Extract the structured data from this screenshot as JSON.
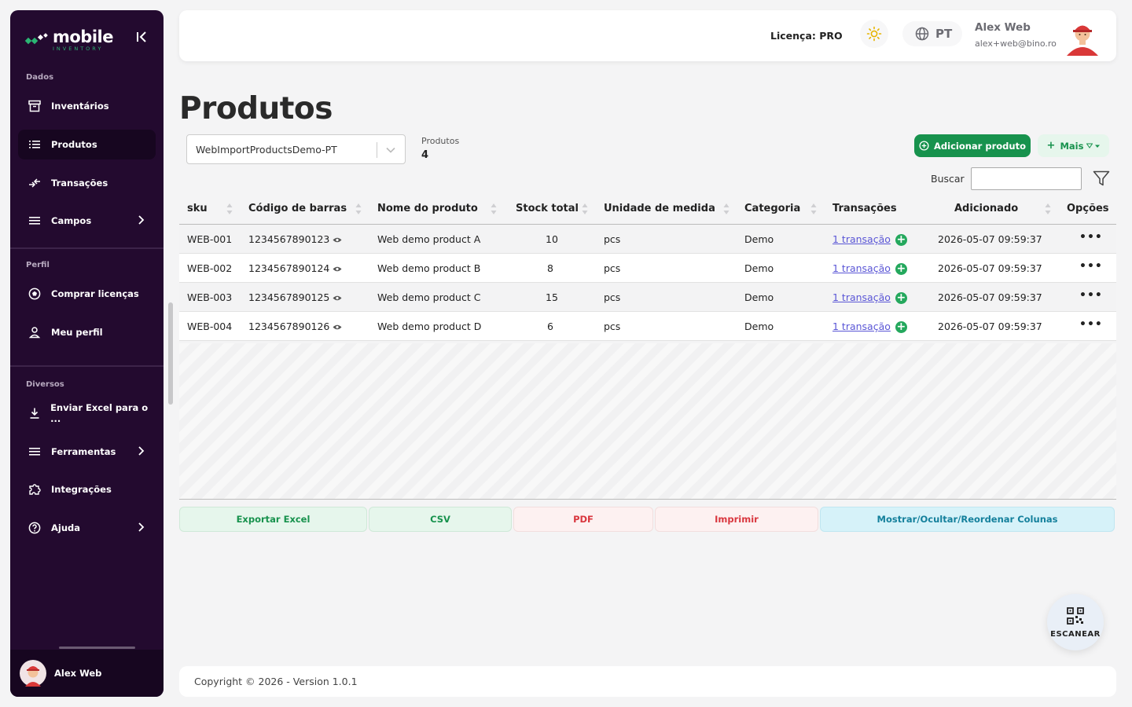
{
  "brand": {
    "name": "mobile",
    "tagline": "INVENTORY"
  },
  "sidebar": {
    "sections": [
      {
        "label": "Dados",
        "items": [
          {
            "label": "Inventários",
            "icon": "archive-icon"
          },
          {
            "label": "Produtos",
            "icon": "list-icon",
            "active": true
          },
          {
            "label": "Transações",
            "icon": "transfer-icon"
          },
          {
            "label": "Campos",
            "icon": "menu-icon",
            "has_children": true
          }
        ]
      },
      {
        "label": "Perfil",
        "items": [
          {
            "label": "Comprar licenças",
            "icon": "soccer-ball-icon"
          },
          {
            "label": "Meu perfil",
            "icon": "user-icon"
          }
        ]
      },
      {
        "label": "Diversos",
        "items": [
          {
            "label": "Enviar Excel para o ...",
            "icon": "download-icon"
          },
          {
            "label": "Ferramentas",
            "icon": "menu-icon",
            "has_children": true
          },
          {
            "label": "Integrações",
            "icon": "puzzle-icon"
          },
          {
            "label": "Ajuda",
            "icon": "help-icon",
            "has_children": true
          }
        ]
      }
    ],
    "user": {
      "name": "Alex Web"
    }
  },
  "header": {
    "license": "Licença: PRO",
    "language": "PT",
    "user_name": "Alex Web",
    "user_email": "alex+web@bino.ro"
  },
  "main": {
    "title": "Produtos",
    "inventory_select": "WebImportProductsDemo-PT",
    "count_label": "Produtos",
    "count_value": "4",
    "add_button": "Adicionar produto",
    "more_button": "Mais",
    "search_label": "Buscar",
    "search_value": "",
    "columns": [
      "sku",
      "Código de barras",
      "Nome do produto",
      "Stock total",
      "Unidade de medida",
      "Categoria",
      "Transações",
      "Adicionado",
      "Opções"
    ],
    "rows": [
      {
        "sku": "WEB-001",
        "barcode": "1234567890123",
        "name": "Web demo product A",
        "stock": "10",
        "unit": "pcs",
        "category": "Demo",
        "transactions": "1 transação",
        "added": "2026-05-07 09:59:37"
      },
      {
        "sku": "WEB-002",
        "barcode": "1234567890124",
        "name": "Web demo product B",
        "stock": "8",
        "unit": "pcs",
        "category": "Demo",
        "transactions": "1 transação",
        "added": "2026-05-07 09:59:37"
      },
      {
        "sku": "WEB-003",
        "barcode": "1234567890125",
        "name": "Web demo product C",
        "stock": "15",
        "unit": "pcs",
        "category": "Demo",
        "transactions": "1 transação",
        "added": "2026-05-07 09:59:37"
      },
      {
        "sku": "WEB-004",
        "barcode": "1234567890126",
        "name": "Web demo product D",
        "stock": "6",
        "unit": "pcs",
        "category": "Demo",
        "transactions": "1 transação",
        "added": "2026-05-07 09:59:37"
      }
    ],
    "export_buttons": [
      "Exportar Excel",
      "CSV",
      "PDF",
      "Imprimir",
      "Mostrar/Ocultar/Reordenar Colunas"
    ]
  },
  "scan_button": "ESCANEAR",
  "footer": "Copyright © 2026 - Version 1.0.1",
  "colors": {
    "sidebar": "#230a2f",
    "accent_green": "#17924d",
    "link": "#5a56d6"
  }
}
